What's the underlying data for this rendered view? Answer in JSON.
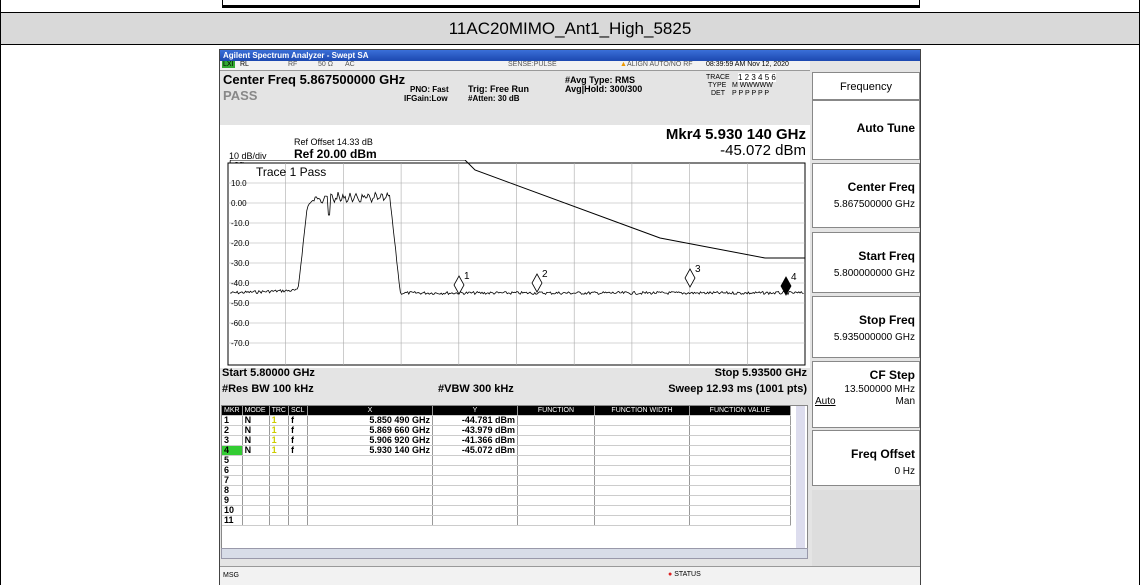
{
  "header": {
    "title": "11AC20MIMO_Ant1_High_5825"
  },
  "analyzer": {
    "window_title": "Agilent Spectrum Analyzer - Swept SA",
    "status": {
      "rl": "RL",
      "rf": "RF",
      "impedance": "50 Ω",
      "coupling": "AC",
      "sense": "SENSE:PULSE",
      "align": "ALIGN AUTO/NO RF",
      "datetime": "08:39:59 AM Nov 12, 2020"
    },
    "center_freq": "Center Freq 5.867500000 GHz",
    "pass": "PASS",
    "pno": "PNO: Fast",
    "ifgain": "IFGain:Low",
    "trig": "Trig: Free Run",
    "atten": "#Atten: 30 dB",
    "avg_type": "#Avg Type: RMS",
    "avg_hold": "Avg|Hold: 300/300",
    "trace_label": "TRACE",
    "trace_nums": "1 2 3 4 5 6",
    "type_label": "TYPE",
    "type_val": "M WWWWW",
    "det_label": "DET",
    "det_val": "P P P P P P",
    "ref_offset": "Ref Offset 14.33 dB",
    "scale": "10 dB/div",
    "ref": "Ref 20.00 dBm",
    "log": "Log",
    "marker_readout": [
      "Mkr4 5.930 140 GHz",
      "-45.072 dBm"
    ],
    "trace_pass": "Trace 1 Pass",
    "y_labels": [
      "10.0",
      "0.00",
      "-10.0",
      "-20.0",
      "-30.0",
      "-40.0",
      "-50.0",
      "-60.0",
      "-70.0"
    ],
    "marker_labels": [
      "1",
      "2",
      "3",
      "4"
    ],
    "start": "Start 5.80000 GHz",
    "stop": "Stop 5.93500 GHz",
    "rbw": "#Res BW 100 kHz",
    "vbw": "#VBW 300 kHz",
    "sweep": "Sweep  12.93 ms (1001 pts)",
    "table": {
      "columns": [
        "MKR",
        "MODE",
        "TRC",
        "SCL",
        "X",
        "Y",
        "FUNCTION",
        "FUNCTION WIDTH",
        "FUNCTION VALUE"
      ],
      "rows": [
        [
          "1",
          "N",
          "1",
          "f",
          "5.850 490 GHz",
          "-44.781 dBm"
        ],
        [
          "2",
          "N",
          "1",
          "f",
          "5.869 660 GHz",
          "-43.979 dBm"
        ],
        [
          "3",
          "N",
          "1",
          "f",
          "5.906 920 GHz",
          "-41.366 dBm"
        ],
        [
          "4",
          "N",
          "1",
          "f",
          "5.930 140 GHz",
          "-45.072 dBm"
        ]
      ],
      "empty_rows": [
        "5",
        "6",
        "7",
        "8",
        "9",
        "10",
        "11"
      ]
    },
    "msg": "MSG",
    "status_button": "STATUS"
  },
  "softkeys": {
    "title": "Frequency",
    "keys": [
      {
        "label": "Auto Tune"
      },
      {
        "label": "Center Freq",
        "value": "5.867500000 GHz"
      },
      {
        "label": "Start Freq",
        "value": "5.800000000 GHz"
      },
      {
        "label": "Stop Freq",
        "value": "5.935000000 GHz"
      },
      {
        "label": "CF Step",
        "value": "13.500000 MHz",
        "auto": "Auto",
        "man": "Man"
      },
      {
        "label": "Freq Offset",
        "value": "0 Hz"
      }
    ]
  }
}
